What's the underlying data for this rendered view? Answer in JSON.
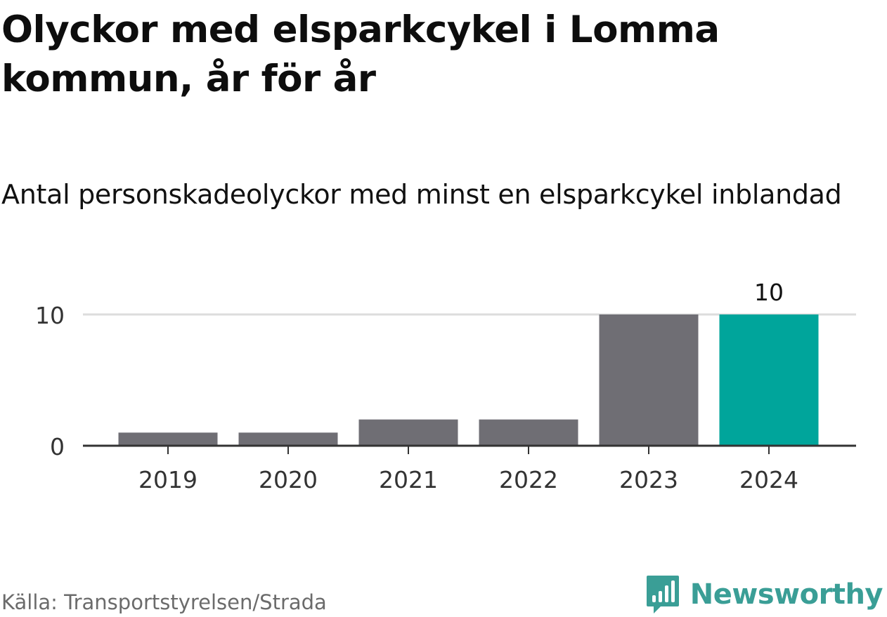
{
  "header": {
    "title": "Olyckor med elsparkcykel i Lomma kommun, år för år",
    "subtitle": "Antal personskadeolyckor med minst en elsparkcykel inblandad"
  },
  "footer": {
    "source": "Källa: Transportstyrelsen/Strada",
    "brand": "Newsworthy",
    "brand_icon": "newsworthy-logo-icon",
    "brand_color": "#3a9e96"
  },
  "colors": {
    "bar_default": "#6f6e74",
    "bar_highlight": "#00a59b",
    "gridline": "#dddddd",
    "axis": "#333333",
    "text": "#333333"
  },
  "chart_data": {
    "type": "bar",
    "categories": [
      "2019",
      "2020",
      "2021",
      "2022",
      "2023",
      "2024"
    ],
    "values": [
      1,
      1,
      2,
      2,
      10,
      10
    ],
    "highlight": [
      "2024"
    ],
    "data_labels": [
      {
        "category": "2024",
        "label": "10"
      }
    ],
    "ylim": [
      0,
      10
    ],
    "yticks": [
      0,
      10
    ],
    "grid": true,
    "xlabel": "",
    "ylabel": ""
  }
}
